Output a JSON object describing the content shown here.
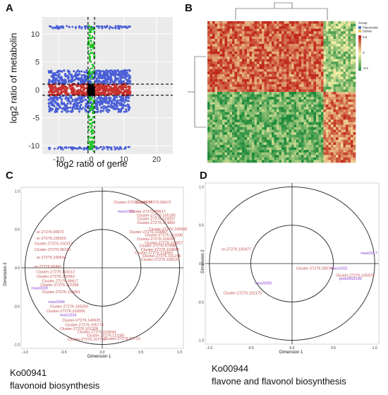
{
  "panels": {
    "A": {
      "letter": "A"
    },
    "B": {
      "letter": "B"
    },
    "C": {
      "letter": "C",
      "caption_id": "Ko00941",
      "caption_name": "flavonoid biosynthesis"
    },
    "D": {
      "letter": "D",
      "caption_id": "Ko00944",
      "caption_name": "flavone and flavonol biosynthesis"
    }
  },
  "colors": {
    "panel_bg": "#ebebeb",
    "grid": "#ffffff",
    "blue": "#4a5fd6",
    "red": "#c8312f",
    "green": "#18c21c",
    "black": "#000000",
    "heat_high": "#c0281e",
    "heat_mid": "#f6f0a8",
    "heat_low": "#1e8a3c",
    "label_red": "#c0504d",
    "label_purple": "#8a3fd1"
  },
  "chart_data": [
    {
      "panel": "A",
      "type": "scatter",
      "xlabel": "log2 ratio of gene",
      "ylabel": "log2 ratio of metabolin",
      "xlim": [
        -15,
        25
      ],
      "ylim": [
        -11.5,
        13
      ],
      "xticks": [
        "-10",
        "0",
        "10",
        "20"
      ],
      "xtick_values": [
        -10,
        0,
        10,
        20
      ],
      "yticks": [
        "-10",
        "-5",
        "0",
        "5",
        "10"
      ],
      "ytick_values": [
        -10,
        -5,
        0,
        5,
        10
      ],
      "dashed_v": [
        -1,
        1
      ],
      "dashed_h": [
        -1,
        1
      ],
      "grid": true,
      "series": [
        {
          "color": "blue",
          "note": "dense band y 0..3.5 and -4..-1, rows at y=11.2 and y=-10.5, x -13..12"
        },
        {
          "color": "red",
          "note": "dense band y -1..1, x -13..12"
        },
        {
          "color": "green",
          "note": "x -1..1 column"
        },
        {
          "color": "black",
          "note": "center x -1..1, y -1..1"
        }
      ]
    },
    {
      "panel": "B",
      "type": "heatmap",
      "legend_title": "Group",
      "legend_groups": [
        "Flavonoids",
        "Genes"
      ],
      "legend_group_colors": [
        "#5b78c8",
        "#e6c24a"
      ],
      "legend_scale": [
        "0.5",
        "0",
        "-0.5"
      ]
    },
    {
      "panel": "C",
      "type": "scatter",
      "xlabel": "Dimension 1",
      "ylabel": "Dimension 2",
      "xlim": [
        -1.05,
        1.05
      ],
      "ylim": [
        -1.05,
        1.05
      ],
      "xticks": [
        "-1.0",
        "-0.5",
        "0.0",
        "0.5",
        "1.0"
      ],
      "xtick_values": [
        -1,
        -0.5,
        0,
        0.5,
        1
      ],
      "yticks": [
        "-1.0",
        "-0.5",
        "0.0",
        "0.5",
        "1.0"
      ],
      "ytick_values": [
        -1,
        -0.5,
        0,
        0.5,
        1
      ],
      "circles": [
        1.0,
        0.5
      ],
      "labels": [
        {
          "text": "Cluster-27276.109374",
          "x": 0.15,
          "y": 0.84,
          "c": "red"
        },
        {
          "text": "Cluster-27276.90672",
          "x": 0.42,
          "y": 0.84,
          "c": "red"
        },
        {
          "text": "mws1095",
          "x": 0.2,
          "y": 0.72,
          "c": "purple"
        },
        {
          "text": "Cluster-27276.99617",
          "x": 0.35,
          "y": 0.72,
          "c": "red"
        },
        {
          "text": "Cluster-27276.105180",
          "x": 0.45,
          "y": 0.67,
          "c": "red"
        },
        {
          "text": "Cluster-27276.118297",
          "x": 0.45,
          "y": 0.62,
          "c": "red"
        },
        {
          "text": "Cluster-27276.113850",
          "x": 0.45,
          "y": 0.57,
          "c": "red"
        },
        {
          "text": "Cluster-27276.105999",
          "x": 0.6,
          "y": 0.49,
          "c": "red"
        },
        {
          "text": "Cluster-27276.103867",
          "x": 0.35,
          "y": 0.45,
          "c": "red"
        },
        {
          "text": "Cluster-27276.111006",
          "x": 0.55,
          "y": 0.41,
          "c": "red"
        },
        {
          "text": "Cluster-27276.109267",
          "x": 0.45,
          "y": 0.36,
          "c": "red"
        },
        {
          "text": "Cluster-27276.115827",
          "x": 0.55,
          "y": 0.31,
          "c": "red"
        },
        {
          "text": "Cluster-27276.97498",
          "x": 0.48,
          "y": 0.27,
          "c": "red"
        },
        {
          "text": "Cluster-27276.103840",
          "x": 0.5,
          "y": 0.22,
          "c": "red"
        },
        {
          "text": "Cluster-27276.114550",
          "x": 0.42,
          "y": 0.18,
          "c": "red"
        },
        {
          "text": "Cluster-27276.101245",
          "x": 0.52,
          "y": 0.14,
          "c": "red"
        },
        {
          "text": "Cluster-27276.108120",
          "x": 0.5,
          "y": 0.09,
          "c": "red"
        },
        {
          "text": "er-27276.90672",
          "x": -0.85,
          "y": 0.45,
          "c": "red"
        },
        {
          "text": "er-27276.105920",
          "x": -0.85,
          "y": 0.37,
          "c": "red"
        },
        {
          "text": "Cluster-27276.102317",
          "x": -0.88,
          "y": 0.3,
          "c": "red"
        },
        {
          "text": "Cluster-27276.98130",
          "x": -0.88,
          "y": 0.22,
          "c": "red"
        },
        {
          "text": "er-27276.100534",
          "x": -0.85,
          "y": 0.12,
          "c": "red"
        },
        {
          "text": "er-27276.95441",
          "x": -0.88,
          "y": 0.0,
          "c": "red"
        },
        {
          "text": "Cluster-27276.104112",
          "x": -0.85,
          "y": -0.07,
          "c": "red"
        },
        {
          "text": "Cluster-27276.110543",
          "x": -0.85,
          "y": -0.13,
          "c": "red"
        },
        {
          "text": "Cluster-27276.98617",
          "x": -0.78,
          "y": -0.19,
          "c": "red"
        },
        {
          "text": "Cluster-27276.112208",
          "x": -0.8,
          "y": -0.24,
          "c": "red"
        },
        {
          "text": "mws0039",
          "x": -0.92,
          "y": -0.28,
          "c": "purple"
        },
        {
          "text": "Cluster-27276.103451",
          "x": -0.78,
          "y": -0.33,
          "c": "red"
        },
        {
          "text": "mws0064",
          "x": -0.7,
          "y": -0.46,
          "c": "purple"
        },
        {
          "text": "Cluster-27276.165250",
          "x": -0.68,
          "y": -0.52,
          "c": "red"
        },
        {
          "text": "Cluster-27276.103050",
          "x": -0.72,
          "y": -0.58,
          "c": "red"
        },
        {
          "text": "mws1034",
          "x": -0.55,
          "y": -0.63,
          "c": "purple"
        },
        {
          "text": "Cluster-27276.140625",
          "x": -0.52,
          "y": -0.7,
          "c": "red"
        },
        {
          "text": "Cluster-27276.105774",
          "x": -0.48,
          "y": -0.76,
          "c": "red"
        },
        {
          "text": "Cluster-27276.101328",
          "x": -0.55,
          "y": -0.81,
          "c": "red"
        },
        {
          "text": "Cluster-27276.104544",
          "x": -0.32,
          "y": -0.85,
          "c": "red"
        },
        {
          "text": "Cluster-27276.111180",
          "x": -0.2,
          "y": -0.9,
          "c": "red"
        },
        {
          "text": "Cluster-27276.97713",
          "x": 0.02,
          "y": -0.94,
          "c": "red"
        },
        {
          "text": "Cluster-27276.107702",
          "x": -0.45,
          "y": -0.95,
          "c": "red"
        }
      ]
    },
    {
      "panel": "D",
      "type": "scatter",
      "xlabel": "Dimension 1",
      "ylabel": "Dimension 2",
      "xlim": [
        -1.05,
        1.05
      ],
      "ylim": [
        -1.05,
        1.05
      ],
      "xticks": [
        "-1.0",
        "-0.5",
        "0.0",
        "0.5",
        "1.0"
      ],
      "xtick_values": [
        -1,
        -0.5,
        0,
        0.5,
        1
      ],
      "yticks": [
        "-1.0",
        "-0.5",
        "0.0",
        "0.5",
        "1.0"
      ],
      "ytick_values": [
        -1,
        -0.5,
        0,
        0.5,
        1
      ],
      "circles": [
        1.0,
        0.5
      ],
      "labels": [
        {
          "text": "er-27276.105477",
          "x": -0.85,
          "y": 0.17,
          "c": "red"
        },
        {
          "text": "mws0917",
          "x": 0.83,
          "y": 0.12,
          "c": "purple"
        },
        {
          "text": "Cluster-27276.28376",
          "x": 0.05,
          "y": -0.08,
          "c": "red"
        },
        {
          "text": "mws1002",
          "x": 0.47,
          "y": -0.08,
          "c": "purple"
        },
        {
          "text": "Cluster-27276.105976",
          "x": 0.53,
          "y": -0.17,
          "c": "red"
        },
        {
          "text": "pmb0653190",
          "x": 0.57,
          "y": -0.21,
          "c": "purple"
        },
        {
          "text": "mws0059",
          "x": -0.45,
          "y": -0.27,
          "c": "purple"
        },
        {
          "text": "Cluster-27276.102175",
          "x": -0.83,
          "y": -0.4,
          "c": "red"
        }
      ]
    }
  ]
}
